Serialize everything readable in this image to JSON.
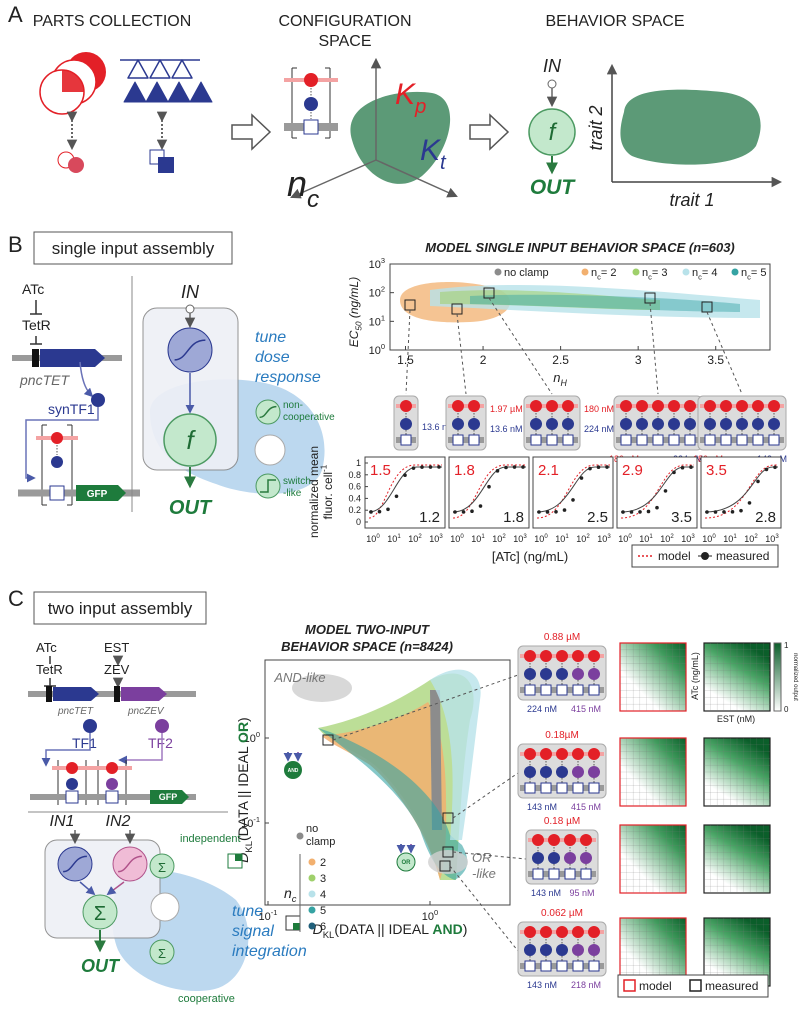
{
  "panel_a": {
    "label": "A",
    "parts_title": "PARTS COLLECTION",
    "config_title": [
      "CONFIGURATION",
      "SPACE"
    ],
    "behavior_title": "BEHAVIOR SPACE",
    "k_p": {
      "main": "K",
      "sub": "p"
    },
    "k_t": {
      "main": "K",
      "sub": "t"
    },
    "n_c": {
      "main": "n",
      "sub": "c"
    },
    "in": "IN",
    "f": "f",
    "out": "OUT",
    "trait2": "trait 2",
    "trait1": "trait 1"
  },
  "panel_b": {
    "label": "B",
    "box": "single input assembly",
    "circuit": {
      "inducer": "ATc",
      "repressor": "TetR",
      "promoter": "pncTET",
      "tf": "synTF1",
      "reporter": "GFP"
    },
    "module": {
      "in": "IN",
      "f": "f",
      "out": "OUT",
      "tune": [
        "tune",
        "dose",
        "response"
      ],
      "noncoop": [
        "non-",
        "cooperative"
      ],
      "switch": [
        "switch",
        "-like"
      ]
    },
    "scatter": {
      "title": "MODEL SINGLE INPUT BEHAVIOR SPACE (n=603)",
      "ylabel": {
        "main": "EC",
        "sub": "50",
        "rest": " (ng/mL)"
      },
      "xlabel": {
        "main": "n",
        "sub": "H"
      },
      "yticks": [
        {
          "base": "10",
          "exp": "3"
        },
        {
          "base": "10",
          "exp": "2"
        },
        {
          "base": "10",
          "exp": "1"
        },
        {
          "base": "10",
          "exp": "0"
        }
      ],
      "xlim": [
        1.4,
        3.85
      ],
      "xticks": [
        1.5,
        2,
        2.5,
        3,
        3.5
      ],
      "legend": [
        {
          "name": "no clamp",
          "color": "#8c8c8c"
        },
        {
          "main": "n",
          "sub": "c",
          "rest": "= 2",
          "color": "#f2b06f"
        },
        {
          "main": "n",
          "sub": "c",
          "rest": "= 3",
          "color": "#9fd06b"
        },
        {
          "main": "n",
          "sub": "c",
          "rest": "= 4",
          "color": "#b8e2ea"
        },
        {
          "main": "n",
          "sub": "c",
          "rest": "= 5",
          "color": "#35a3a3"
        }
      ]
    },
    "configs": [
      {
        "units": 1,
        "labels": [
          "13.6 nM"
        ]
      },
      {
        "units": 2,
        "labels": [
          "1.97 µM",
          "13.6 nM"
        ]
      },
      {
        "units": 3,
        "labels": [
          "180 nM",
          "224 nM"
        ]
      },
      {
        "units": 5,
        "labels": [
          "180 nM",
          "224 nM"
        ]
      },
      {
        "units": 5,
        "labels": [
          "180 nM",
          "143 nM"
        ]
      }
    ],
    "dose": {
      "ylabel": [
        "normalized mean",
        "fluor. cell"
      ],
      "ylabel_sup": "-1",
      "yticks": [
        0,
        0.2,
        0.4,
        0.6,
        0.8,
        1
      ],
      "xticks": [
        {
          "base": "10",
          "exp": "0"
        },
        {
          "base": "10",
          "exp": "1"
        },
        {
          "base": "10",
          "exp": "2"
        },
        {
          "base": "10",
          "exp": "3"
        }
      ],
      "xlabel": "[ATc] (ng/mL)",
      "panels": [
        {
          "model": 1.5,
          "measured": 1.2
        },
        {
          "model": 1.8,
          "measured": 1.8
        },
        {
          "model": 2.1,
          "measured": 2.5
        },
        {
          "model": 2.9,
          "measured": 3.5
        },
        {
          "model": 3.5,
          "measured": 2.8
        }
      ],
      "legend": {
        "model": "model",
        "measured": "measured"
      }
    }
  },
  "panel_c": {
    "label": "C",
    "box": "two input assembly",
    "circuit": {
      "inducer1": "ATc",
      "repressor": "TetR",
      "inducer2": "EST",
      "activator": "ZEV",
      "promoter1": "pncTET",
      "promoter2": "pncZEV",
      "tf1": "TF1",
      "tf2": "TF2",
      "reporter": "GFP"
    },
    "module": {
      "in1": "IN1",
      "in2": "IN2",
      "out": "OUT",
      "sum": "Σ",
      "independent": "independent",
      "cooperative": "cooperative",
      "tune": [
        "tune",
        "signal",
        "integration"
      ]
    },
    "scatter": {
      "title": [
        "MODEL TWO-INPUT",
        "BEHAVIOR SPACE (n=8424)"
      ],
      "ylabel": {
        "d": "D",
        "sub": "KL",
        "a": "(DATA || IDEAL ",
        "b": "OR",
        "c": ")"
      },
      "xlabel": {
        "d": "D",
        "sub": "KL",
        "a": "(DATA || IDEAL ",
        "b": "AND",
        "c": ")"
      },
      "yticks": [
        {
          "base": "10",
          "exp": "0"
        },
        {
          "base": "10",
          "exp": "-1"
        }
      ],
      "xticks": [
        {
          "base": "10",
          "exp": "-1"
        },
        {
          "base": "10",
          "exp": "0"
        }
      ],
      "and_like": "AND-like",
      "or_like": [
        "OR",
        "-like"
      ],
      "and_icon": "AND",
      "or_icon": "OR",
      "legend": {
        "no_clamp": [
          "no",
          "clamp"
        ],
        "nc": {
          "main": "n",
          "sub": "c"
        },
        "entries": [
          {
            "name": "2",
            "color": "#f2b06f"
          },
          {
            "name": "3",
            "color": "#9fd06b"
          },
          {
            "name": "4",
            "color": "#b8e2ea"
          },
          {
            "name": "5",
            "color": "#35a3a3"
          },
          {
            "name": "6",
            "color": "#1f5f7a"
          }
        ]
      }
    },
    "configs": [
      {
        "top": "0.88 µM",
        "left": "224 nM",
        "right": "415 nM"
      },
      {
        "top": "0.18µM",
        "left": "143 nM",
        "right": "415 nM"
      },
      {
        "top": "0.18 µM",
        "left": "143 nM",
        "right": "95 nM"
      },
      {
        "top": "0.062 µM",
        "left": "143 nM",
        "right": "218 nM"
      }
    ],
    "heatmap": {
      "ylabel": "ATc (ng/mL)",
      "xlabel": "EST (nM)",
      "cbar_ticks": [
        1,
        0
      ],
      "cbar_label": "normalized output"
    },
    "legend": {
      "model": "model",
      "measured": "measured"
    }
  }
}
